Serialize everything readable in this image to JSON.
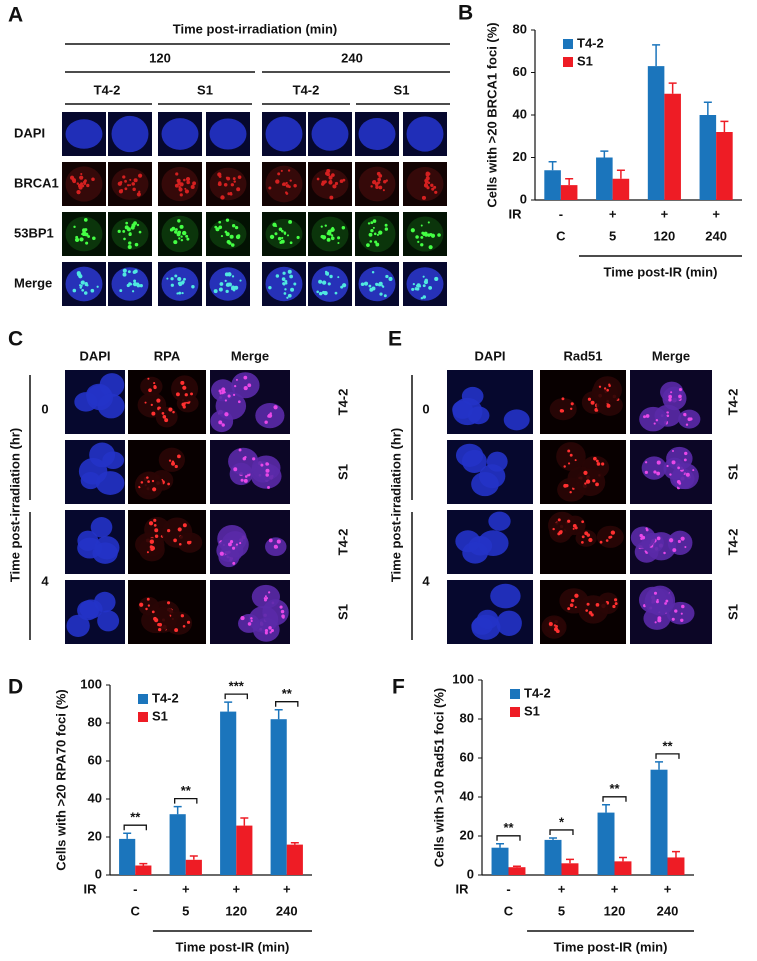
{
  "panel_a": {
    "label": "A",
    "title": "Time post-irradiation (min)",
    "times": [
      "120",
      "240"
    ],
    "cell_lines": [
      "T4-2",
      "S1",
      "T4-2",
      "S1"
    ],
    "stains": [
      "DAPI",
      "BRCA1",
      "53BP1",
      "Merge"
    ]
  },
  "panel_c": {
    "label": "C",
    "y_label": "Time post-irradiation (hr)",
    "columns": [
      "DAPI",
      "RPA",
      "Merge"
    ],
    "groups": [
      "0",
      "4"
    ],
    "rows": [
      "T4-2",
      "S1",
      "T4-2",
      "S1"
    ]
  },
  "panel_e": {
    "label": "E",
    "y_label": "Time post-irradiation (hr)",
    "columns": [
      "DAPI",
      "Rad51",
      "Merge"
    ],
    "groups": [
      "0",
      "4"
    ],
    "rows": [
      "T4-2",
      "S1",
      "T4-2",
      "S1"
    ]
  },
  "chart_data": [
    {
      "type": "bar",
      "label": "B",
      "y_label": "Cells with >20 BRCA1 foci (%)",
      "categories": [
        "C",
        "5",
        "120",
        "240"
      ],
      "ir_label": "IR",
      "ir": [
        "-",
        "+",
        "+",
        "+"
      ],
      "x_group_label": "Time post-IR (min)",
      "legend": "upper left",
      "series": [
        {
          "name": "T4-2",
          "color": "#1b75bc",
          "values": [
            14,
            20,
            63,
            40
          ],
          "errors": [
            4,
            3,
            10,
            6
          ]
        },
        {
          "name": "S1",
          "color": "#ee1c25",
          "values": [
            7,
            10,
            50,
            32
          ],
          "errors": [
            3,
            4,
            5,
            5
          ]
        }
      ],
      "ylim": [
        0,
        80
      ],
      "yticks": [
        0,
        20,
        40,
        60,
        80
      ]
    },
    {
      "type": "bar",
      "label": "D",
      "y_label": "Cells with >20 RPA70  foci (%)",
      "categories": [
        "C",
        "5",
        "120",
        "240"
      ],
      "ir_label": "IR",
      "ir": [
        "-",
        "+",
        "+",
        "+"
      ],
      "x_group_label": "Time post-IR (min)",
      "legend": "upper left",
      "significance": [
        "**",
        "**",
        "***",
        "**"
      ],
      "series": [
        {
          "name": "T4-2",
          "color": "#1b75bc",
          "values": [
            19,
            32,
            86,
            82
          ],
          "errors": [
            3,
            4,
            5,
            5
          ]
        },
        {
          "name": "S1",
          "color": "#ee1c25",
          "values": [
            5,
            8,
            26,
            16
          ],
          "errors": [
            1,
            2,
            4,
            1
          ]
        }
      ],
      "ylim": [
        0,
        100
      ],
      "yticks": [
        0,
        20,
        40,
        60,
        80,
        100
      ]
    },
    {
      "type": "bar",
      "label": "F",
      "y_label": "Cells with >10 Rad51 foci (%)",
      "categories": [
        "C",
        "5",
        "120",
        "240"
      ],
      "ir_label": "IR",
      "ir": [
        "-",
        "+",
        "+",
        "+"
      ],
      "x_group_label": "Time post-IR (min)",
      "legend": "upper left",
      "significance": [
        "**",
        "*",
        "**",
        "**"
      ],
      "series": [
        {
          "name": "T4-2",
          "color": "#1b75bc",
          "values": [
            14,
            18,
            32,
            54
          ],
          "errors": [
            2,
            1,
            4,
            4
          ]
        },
        {
          "name": "S1",
          "color": "#ee1c25",
          "values": [
            4,
            6,
            7,
            9
          ],
          "errors": [
            0.5,
            2,
            2,
            3
          ]
        }
      ],
      "ylim": [
        0,
        100
      ],
      "yticks": [
        0,
        20,
        40,
        60,
        80,
        100
      ]
    }
  ]
}
